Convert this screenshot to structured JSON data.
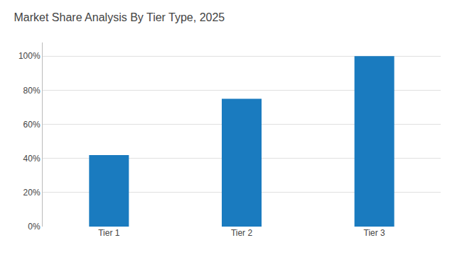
{
  "chart_data": {
    "type": "bar",
    "title": "Market Share Analysis By Tier Type, 2025",
    "categories": [
      "Tier 1",
      "Tier 2",
      "Tier 3"
    ],
    "values": [
      42,
      75,
      100
    ],
    "color": "#1a7bbf",
    "ylim": [
      0,
      108
    ],
    "yticks": [
      {
        "value": 0,
        "label": "0%"
      },
      {
        "value": 20,
        "label": "20%"
      },
      {
        "value": 40,
        "label": "40%"
      },
      {
        "value": 60,
        "label": "60%"
      },
      {
        "value": 80,
        "label": "80%"
      },
      {
        "value": 100,
        "label": "100%"
      }
    ],
    "grid": true
  }
}
